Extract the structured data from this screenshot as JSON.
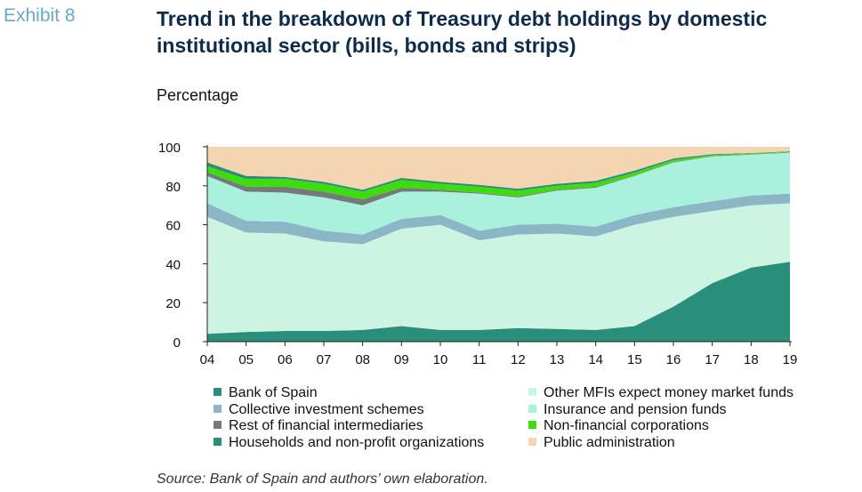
{
  "header": {
    "exhibit": "Exhibit 8",
    "title_line1": "Trend in the breakdown of Treasury debt holdings by domestic",
    "title_line2": "institutional sector (bills, bonds and strips)",
    "unit": "Percentage"
  },
  "source": "Source: Bank of Spain and authors’ own elaboration.",
  "chart_data": {
    "type": "area",
    "stacked": true,
    "x": [
      "04",
      "05",
      "06",
      "07",
      "08",
      "09",
      "10",
      "11",
      "12",
      "13",
      "14",
      "15",
      "16",
      "17",
      "18",
      "19"
    ],
    "ylim": [
      0,
      100
    ],
    "yticks": [
      0,
      20,
      40,
      60,
      80,
      100
    ],
    "grid": false,
    "legend_placement": "bottom",
    "series": [
      {
        "name": "Bank of Spain",
        "color": "#2a8f7a",
        "values": [
          4,
          5,
          5.5,
          5.5,
          6,
          8,
          6,
          6,
          7,
          6.5,
          6,
          8,
          18,
          30,
          38,
          41
        ]
      },
      {
        "name": "Other MFIs expect money market funds",
        "color": "#cdf3e2",
        "values": [
          60,
          51,
          50,
          46,
          44,
          50,
          54,
          46,
          48,
          49,
          48,
          52,
          46,
          37,
          32,
          30
        ]
      },
      {
        "name": "Collective investment schemes",
        "color": "#8ab6c6",
        "values": [
          7,
          6,
          6,
          5.5,
          5,
          5,
          5,
          5,
          5,
          5,
          5,
          5,
          5,
          5,
          5,
          5
        ]
      },
      {
        "name": "Insurance and pension funds",
        "color": "#a9f0dd",
        "values": [
          14,
          15,
          15,
          17,
          15,
          14,
          12,
          19,
          14,
          17,
          20,
          20,
          23,
          23,
          21,
          21
        ]
      },
      {
        "name": "Rest of financial intermediaries",
        "color": "#747a78",
        "values": [
          2,
          2.5,
          3,
          3,
          3,
          2,
          1,
          0.5,
          0.5,
          0.5,
          0.5,
          0.3,
          0.3,
          0.2,
          0.2,
          0.2
        ]
      },
      {
        "name": "Non-financial corporations",
        "color": "#3ddc0c",
        "values": [
          3,
          4,
          4,
          4,
          4,
          4,
          3,
          3,
          3,
          2,
          2,
          1.5,
          1,
          0.6,
          0.4,
          0.3
        ]
      },
      {
        "name": "Households and non-profit organizations",
        "color": "#2a8f7a",
        "values": [
          2,
          1.5,
          1,
          1,
          1,
          1,
          1,
          1,
          1,
          1,
          1,
          1,
          0.7,
          0.4,
          0.2,
          0.2
        ]
      },
      {
        "name": "Public administration",
        "color": "#f3d6b1",
        "values": [
          8,
          15,
          15.5,
          18,
          22,
          16,
          18,
          19.5,
          21.5,
          19,
          17.5,
          12.2,
          6,
          3.8,
          3.2,
          2.3
        ]
      }
    ],
    "legend_left": [
      "Bank of Spain",
      "Collective investment schemes",
      "Rest of financial intermediaries",
      "Households and non-profit organizations"
    ],
    "legend_right": [
      "Other MFIs expect money market funds",
      "Insurance and pension funds",
      "Non-financial corporations",
      "Public administration"
    ]
  }
}
